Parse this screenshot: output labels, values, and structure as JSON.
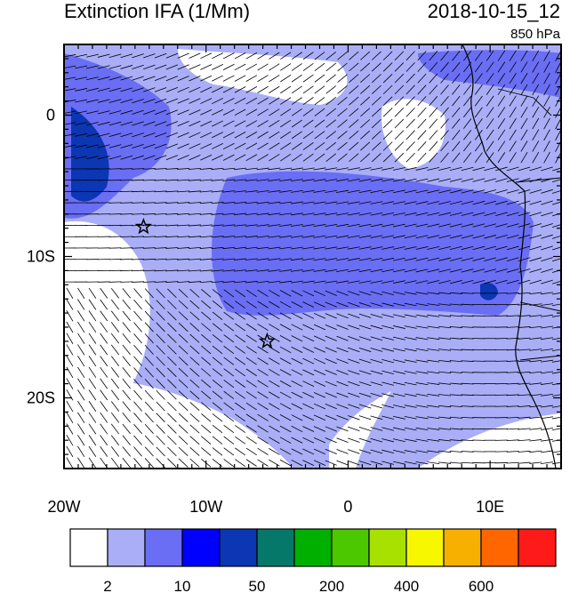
{
  "title": "Extinction IFA (1/Mm)",
  "datetime": "2018-10-15_12",
  "level": "850 hPa",
  "x_ticks": [
    {
      "lon": -20,
      "label": "20W"
    },
    {
      "lon": -10,
      "label": "10W"
    },
    {
      "lon": 0,
      "label": "0"
    },
    {
      "lon": 10,
      "label": "10E"
    }
  ],
  "y_ticks": [
    {
      "lat": 0,
      "label": "0"
    },
    {
      "lat": -10,
      "label": "10S"
    },
    {
      "lat": -20,
      "label": "20S"
    }
  ],
  "extent": {
    "lon": [
      -20,
      15
    ],
    "lat": [
      -25,
      5
    ]
  },
  "stars": [
    {
      "name": "station-ascension",
      "lon": -14.4,
      "lat": -7.9
    },
    {
      "name": "station-st-helena",
      "lon": -5.7,
      "lat": -16.0
    }
  ],
  "colorbar": {
    "colors": [
      "#ffffff",
      "#a9aef7",
      "#6a6ef4",
      "#0000ff",
      "#0b36b4",
      "#05786a",
      "#00b000",
      "#4cc800",
      "#a8e000",
      "#f7f700",
      "#f8b000",
      "#ff6600",
      "#ff1a1a"
    ],
    "tick_labels": [
      "2",
      "10",
      "50",
      "200",
      "400",
      "600"
    ]
  }
}
